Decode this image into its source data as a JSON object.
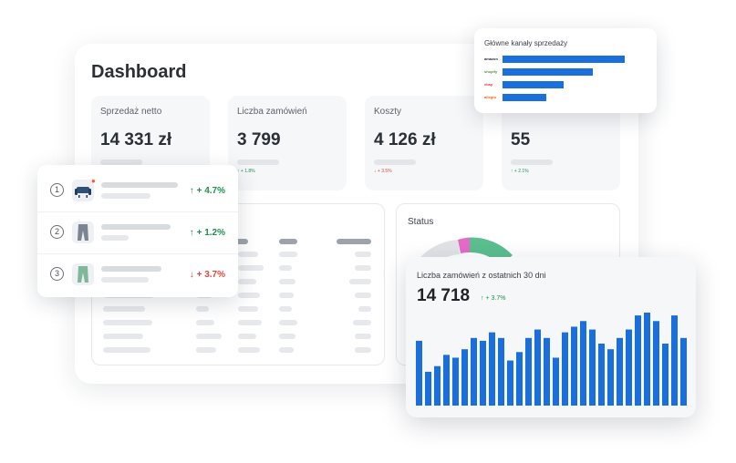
{
  "dashboard": {
    "title": "Dashboard"
  },
  "stats": [
    {
      "label": "Sprzedaż netto",
      "value": "14 331 zł",
      "change": ""
    },
    {
      "label": "Liczba zamówień",
      "value": "3 799",
      "change": "↑ + 1.8%",
      "trend": "up"
    },
    {
      "label": "Koszty",
      "value": "4 126 zł",
      "change": "↓ + 3.5%",
      "trend": "down"
    },
    {
      "label": "",
      "value": "55",
      "change": "↑ + 2.1%",
      "trend": "up"
    }
  ],
  "products": [
    {
      "rank": "1",
      "icon": "armchair-icon",
      "change": "↑ + 4.7%",
      "trend": "up",
      "thumb_color": "#2e4f7a"
    },
    {
      "rank": "2",
      "icon": "trousers-icon",
      "change": "↑ + 1.2%",
      "trend": "up",
      "thumb_color": "#7c8491"
    },
    {
      "rank": "3",
      "icon": "trousers-icon",
      "change": "↓ + 3.7%",
      "trend": "down",
      "thumb_color": "#7fb79a"
    }
  ],
  "channels": {
    "title": "Główne kanały sprzedaży",
    "items": [
      {
        "name": "amazon",
        "value": 1.0,
        "color": "#1f2328"
      },
      {
        "name": "shopify",
        "value": 0.74,
        "color": "#5e8e3e"
      },
      {
        "name": "ebay",
        "value": 0.5,
        "color": "#e53238"
      },
      {
        "name": "allegro",
        "value": 0.36,
        "color": "#ff5a00"
      }
    ]
  },
  "status": {
    "label": "Status"
  },
  "orders_chart": {
    "title": "Liczba zamówień z ostatnich 30 dni",
    "total": "14 718",
    "change": "↑ + 3.7%",
    "chart_data": {
      "type": "bar",
      "values": [
        23,
        12,
        14,
        18,
        17,
        20,
        24,
        23,
        26,
        24,
        16,
        19,
        24,
        27,
        24,
        17,
        26,
        28,
        30,
        27,
        22,
        20,
        24,
        27,
        32,
        33,
        30,
        22,
        32,
        24
      ],
      "color": "#1a6fdc"
    }
  },
  "colors": {
    "accent": "#1a6fdc",
    "up": "#1f8f4e",
    "down": "#e0463b"
  }
}
